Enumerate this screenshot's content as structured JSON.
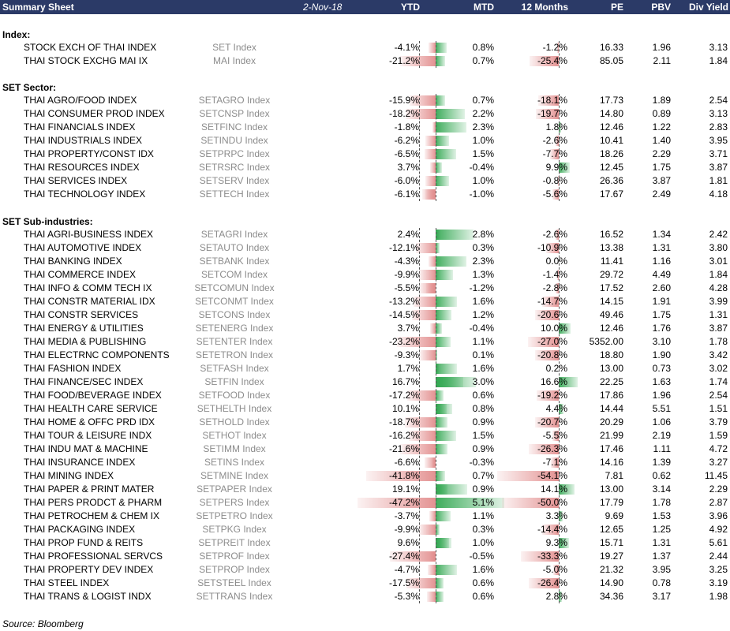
{
  "header": {
    "title": "Summary Sheet",
    "date": "2-Nov-18",
    "columns": [
      "YTD",
      "MTD",
      "12 Months",
      "PE",
      "PBV",
      "Div Yield"
    ]
  },
  "sections": [
    {
      "title": "Index:",
      "rows": [
        {
          "name": "STOCK EXCH OF THAI INDEX",
          "ticker": "SET Index",
          "ytd": "-4.1%",
          "mtd": "0.8%",
          "m12": "-1.2%",
          "pe": "16.33",
          "pbv": "1.96",
          "div": "3.13"
        },
        {
          "name": "THAI STOCK EXCHG MAI IX",
          "ticker": "MAI Index",
          "ytd": "-21.2%",
          "mtd": "0.7%",
          "m12": "-25.4%",
          "pe": "85.05",
          "pbv": "2.11",
          "div": "1.84"
        }
      ]
    },
    {
      "title": "SET Sector:",
      "rows": [
        {
          "name": "THAI AGRO/FOOD INDEX",
          "ticker": "SETAGRO Index",
          "ytd": "-15.9%",
          "mtd": "0.7%",
          "m12": "-18.1%",
          "pe": "17.73",
          "pbv": "1.89",
          "div": "2.54"
        },
        {
          "name": "THAI CONSUMER PROD INDEX",
          "ticker": "SETCNSP Index",
          "ytd": "-18.2%",
          "mtd": "2.2%",
          "m12": "-19.7%",
          "pe": "14.80",
          "pbv": "0.89",
          "div": "3.13"
        },
        {
          "name": "THAI FINANCIALS INDEX",
          "ticker": "SETFINC Index",
          "ytd": "-1.8%",
          "mtd": "2.3%",
          "m12": "1.8%",
          "pe": "12.46",
          "pbv": "1.22",
          "div": "2.83"
        },
        {
          "name": "THAI INDUSTRIALS INDEX",
          "ticker": "SETINDU Index",
          "ytd": "-6.2%",
          "mtd": "1.0%",
          "m12": "-2.6%",
          "pe": "10.41",
          "pbv": "1.40",
          "div": "3.95"
        },
        {
          "name": "THAI PROPERTY/CONST IDX",
          "ticker": "SETPRPC Index",
          "ytd": "-6.5%",
          "mtd": "1.5%",
          "m12": "-7.7%",
          "pe": "18.26",
          "pbv": "2.29",
          "div": "3.71"
        },
        {
          "name": "THAI RESOURCES INDEX",
          "ticker": "SETRSRC Index",
          "ytd": "3.7%",
          "mtd": "-0.4%",
          "m12": "9.9%",
          "pe": "12.45",
          "pbv": "1.75",
          "div": "3.87"
        },
        {
          "name": "THAI SERVICES INDEX",
          "ticker": "SETSERV Index",
          "ytd": "-6.0%",
          "mtd": "1.0%",
          "m12": "-0.8%",
          "pe": "26.36",
          "pbv": "3.87",
          "div": "1.81"
        },
        {
          "name": "THAI TECHNOLOGY INDEX",
          "ticker": "SETTECH Index",
          "ytd": "-6.1%",
          "mtd": "-1.0%",
          "m12": "-5.6%",
          "pe": "17.67",
          "pbv": "2.49",
          "div": "4.18"
        }
      ]
    },
    {
      "title": "SET Sub-industries:",
      "rows": [
        {
          "name": "THAI AGRI-BUSINESS INDEX",
          "ticker": "SETAGRI Index",
          "ytd": "2.4%",
          "mtd": "2.8%",
          "m12": "-2.6%",
          "pe": "16.52",
          "pbv": "1.34",
          "div": "2.42"
        },
        {
          "name": "THAI AUTOMOTIVE INDEX",
          "ticker": "SETAUTO Index",
          "ytd": "-12.1%",
          "mtd": "0.3%",
          "m12": "-10.9%",
          "pe": "13.38",
          "pbv": "1.31",
          "div": "3.80"
        },
        {
          "name": "THAI BANKING INDEX",
          "ticker": "SETBANK Index",
          "ytd": "-4.3%",
          "mtd": "2.3%",
          "m12": "0.0%",
          "pe": "11.41",
          "pbv": "1.16",
          "div": "3.01"
        },
        {
          "name": "THAI COMMERCE INDEX",
          "ticker": "SETCOM Index",
          "ytd": "-9.9%",
          "mtd": "1.3%",
          "m12": "-1.4%",
          "pe": "29.72",
          "pbv": "4.49",
          "div": "1.84"
        },
        {
          "name": "THAI INFO & COMM TECH IX",
          "ticker": "SETCOMUN Index",
          "ytd": "-5.5%",
          "mtd": "-1.2%",
          "m12": "-2.8%",
          "pe": "17.52",
          "pbv": "2.60",
          "div": "4.28"
        },
        {
          "name": "THAI CONSTR MATERIAL IDX",
          "ticker": "SETCONMT Index",
          "ytd": "-13.2%",
          "mtd": "1.6%",
          "m12": "-14.7%",
          "pe": "14.15",
          "pbv": "1.91",
          "div": "3.99"
        },
        {
          "name": "THAI CONSTR SERVICES",
          "ticker": "SETCONS Index",
          "ytd": "-14.5%",
          "mtd": "1.2%",
          "m12": "-20.6%",
          "pe": "49.46",
          "pbv": "1.75",
          "div": "1.31"
        },
        {
          "name": "THAI ENERGY & UTILITIES",
          "ticker": "SETENERG Index",
          "ytd": "3.7%",
          "mtd": "-0.4%",
          "m12": "10.0%",
          "pe": "12.46",
          "pbv": "1.76",
          "div": "3.87"
        },
        {
          "name": "THAI MEDIA & PUBLISHING",
          "ticker": "SETENTER Index",
          "ytd": "-23.2%",
          "mtd": "1.1%",
          "m12": "-27.0%",
          "pe": "5352.00",
          "pbv": "3.10",
          "div": "1.78"
        },
        {
          "name": "THAI ELECTRNC COMPONENTS",
          "ticker": "SETETRON Index",
          "ytd": "-9.3%",
          "mtd": "0.1%",
          "m12": "-20.8%",
          "pe": "18.80",
          "pbv": "1.90",
          "div": "3.42"
        },
        {
          "name": "THAI FASHION INDEX",
          "ticker": "SETFASH Index",
          "ytd": "1.7%",
          "mtd": "1.6%",
          "m12": "0.2%",
          "pe": "13.00",
          "pbv": "0.73",
          "div": "3.02"
        },
        {
          "name": "THAI FINANCE/SEC INDEX",
          "ticker": "SETFIN Index",
          "ytd": "16.7%",
          "mtd": "3.0%",
          "m12": "16.6%",
          "pe": "22.25",
          "pbv": "1.63",
          "div": "1.74"
        },
        {
          "name": "THAI FOOD/BEVERAGE INDEX",
          "ticker": "SETFOOD Index",
          "ytd": "-17.2%",
          "mtd": "0.6%",
          "m12": "-19.2%",
          "pe": "17.86",
          "pbv": "1.96",
          "div": "2.54"
        },
        {
          "name": "THAI HEALTH CARE SERVICE",
          "ticker": "SETHELTH Index",
          "ytd": "10.1%",
          "mtd": "0.8%",
          "m12": "4.4%",
          "pe": "14.44",
          "pbv": "5.51",
          "div": "1.51"
        },
        {
          "name": "THAI HOME & OFFC PRD IDX",
          "ticker": "SETHOLD Index",
          "ytd": "-18.7%",
          "mtd": "0.9%",
          "m12": "-20.7%",
          "pe": "20.29",
          "pbv": "1.06",
          "div": "3.79"
        },
        {
          "name": "THAI TOUR & LEISURE INDX",
          "ticker": "SETHOT Index",
          "ytd": "-16.2%",
          "mtd": "1.5%",
          "m12": "-5.5%",
          "pe": "21.99",
          "pbv": "2.19",
          "div": "1.59"
        },
        {
          "name": "THAI INDU MAT & MACHINE",
          "ticker": "SETIMM Index",
          "ytd": "-21.6%",
          "mtd": "0.9%",
          "m12": "-26.3%",
          "pe": "17.46",
          "pbv": "1.11",
          "div": "4.72"
        },
        {
          "name": "THAI INSURANCE INDEX",
          "ticker": "SETINS Index",
          "ytd": "-6.6%",
          "mtd": "-0.3%",
          "m12": "-7.1%",
          "pe": "14.16",
          "pbv": "1.39",
          "div": "3.27"
        },
        {
          "name": "THAI MINING INDEX",
          "ticker": "SETMINE Index",
          "ytd": "-41.8%",
          "mtd": "0.7%",
          "m12": "-54.1%",
          "pe": "7.81",
          "pbv": "0.62",
          "div": "11.45"
        },
        {
          "name": "THAI PAPER & PRINT MATER",
          "ticker": "SETPAPER Index",
          "ytd": "19.1%",
          "mtd": "0.9%",
          "m12": "14.1%",
          "pe": "13.00",
          "pbv": "3.14",
          "div": "2.29"
        },
        {
          "name": "THAI PERS PRODCT & PHARM",
          "ticker": "SETPERS Index",
          "ytd": "-47.2%",
          "mtd": "5.1%",
          "m12": "-50.0%",
          "pe": "17.79",
          "pbv": "1.78",
          "div": "2.87"
        },
        {
          "name": "THAI PETROCHEM & CHEM IX",
          "ticker": "SETPETRO Index",
          "ytd": "-3.7%",
          "mtd": "1.1%",
          "m12": "3.3%",
          "pe": "9.69",
          "pbv": "1.53",
          "div": "3.96"
        },
        {
          "name": "THAI PACKAGING INDEX",
          "ticker": "SETPKG Index",
          "ytd": "-9.9%",
          "mtd": "0.3%",
          "m12": "-14.4%",
          "pe": "12.65",
          "pbv": "1.25",
          "div": "4.92"
        },
        {
          "name": "THAI PROP FUND & REITS",
          "ticker": "SETPREIT Index",
          "ytd": "9.6%",
          "mtd": "1.0%",
          "m12": "9.3%",
          "pe": "15.71",
          "pbv": "1.31",
          "div": "5.61"
        },
        {
          "name": "THAI PROFESSIONAL SERVCS",
          "ticker": "SETPROF Index",
          "ytd": "-27.4%",
          "mtd": "-0.5%",
          "m12": "-33.3%",
          "pe": "19.27",
          "pbv": "1.37",
          "div": "2.44"
        },
        {
          "name": "THAI PROPERTY DEV INDEX",
          "ticker": "SETPROP Index",
          "ytd": "-4.7%",
          "mtd": "1.6%",
          "m12": "-5.0%",
          "pe": "21.32",
          "pbv": "3.95",
          "div": "3.25"
        },
        {
          "name": "THAI STEEL INDEX",
          "ticker": "SETSTEEL Index",
          "ytd": "-17.5%",
          "mtd": "0.6%",
          "m12": "-26.4%",
          "pe": "14.90",
          "pbv": "0.78",
          "div": "3.19"
        },
        {
          "name": "THAI TRANS & LOGIST INDX",
          "ticker": "SETTRANS Index",
          "ytd": "-5.3%",
          "mtd": "0.6%",
          "m12": "2.8%",
          "pe": "34.36",
          "pbv": "3.17",
          "div": "1.98"
        }
      ]
    }
  ],
  "source": "Source: Bloomberg",
  "colors": {
    "header_bg": "#2b3a67",
    "positive": "#34a853",
    "negative": "#e28c8c",
    "ticker_text": "#8c8c8c"
  }
}
